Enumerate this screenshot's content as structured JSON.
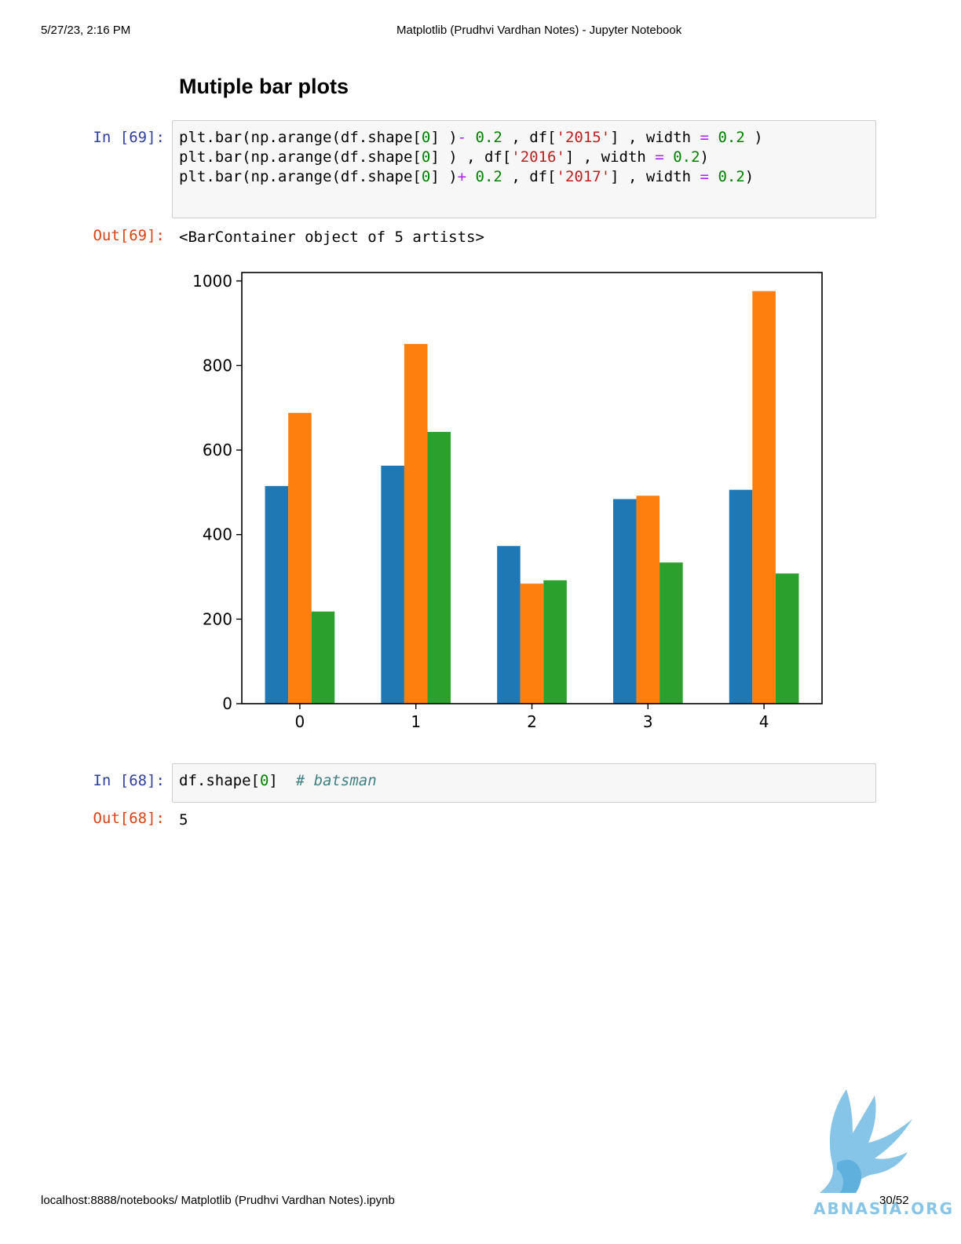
{
  "header": {
    "datetime": "5/27/23, 2:16 PM",
    "title": "Matplotlib (Prudhvi Vardhan Notes) - Jupyter Notebook"
  },
  "section": {
    "heading": "Mutiple bar plots"
  },
  "cell69": {
    "in_prompt": "In [69]:",
    "out_prompt": "Out[69]:",
    "code": {
      "l1": {
        "a": "plt.bar(np.arange(df.shape[",
        "b": "0",
        "c": "] )",
        "d": "-",
        "e": " ",
        "f": "0.2",
        "g": " , df[",
        "h": "'2015'",
        "i": "] , width ",
        "j": "=",
        "k": " ",
        "l": "0.2",
        "m": " )"
      },
      "l2": {
        "a": "plt.bar(np.arange(df.shape[",
        "b": "0",
        "c": "] ) , df[",
        "h": "'2016'",
        "i": "] , width ",
        "j": "=",
        "k": " ",
        "l": "0.2",
        "m": ")"
      },
      "l3": {
        "a": "plt.bar(np.arange(df.shape[",
        "b": "0",
        "c": "] )",
        "d": "+",
        "e": " ",
        "f": "0.2",
        "g": " , df[",
        "h": "'2017'",
        "i": "] , width ",
        "j": "=",
        "k": " ",
        "l": "0.2",
        "m": ")"
      }
    },
    "output": "<BarContainer object of 5 artists>"
  },
  "chart_data": {
    "type": "bar",
    "categories": [
      "0",
      "1",
      "2",
      "3",
      "4"
    ],
    "series": [
      {
        "values": [
          515,
          563,
          373,
          484,
          506
        ],
        "color": "#1f77b4"
      },
      {
        "values": [
          688,
          851,
          284,
          492,
          976
        ],
        "color": "#ff7f0e"
      },
      {
        "values": [
          218,
          643,
          292,
          334,
          308
        ],
        "color": "#2ca02c"
      }
    ],
    "bar_width": 0.2,
    "offsets": [
      -0.2,
      0,
      0.2
    ],
    "xlim": [
      -0.5,
      4.5
    ],
    "ylim": [
      0,
      1020
    ],
    "yticks": [
      0,
      200,
      400,
      600,
      800,
      1000
    ],
    "grid": false,
    "title": "",
    "xlabel": "",
    "ylabel": ""
  },
  "cell68": {
    "in_prompt": "In [68]:",
    "out_prompt": "Out[68]:",
    "code": {
      "a": "df.shape[",
      "b": "0",
      "c": "]  ",
      "comment": "# batsman"
    },
    "output": "5"
  },
  "footer": {
    "url": "localhost:8888/notebooks/ Matplotlib (Prudhvi Vardhan Notes).ipynb",
    "page": "30/52"
  },
  "watermark": {
    "text": "ABNASIA.ORG",
    "logo_icon": "griffin-logo-icon",
    "color": "#87c5e8"
  }
}
